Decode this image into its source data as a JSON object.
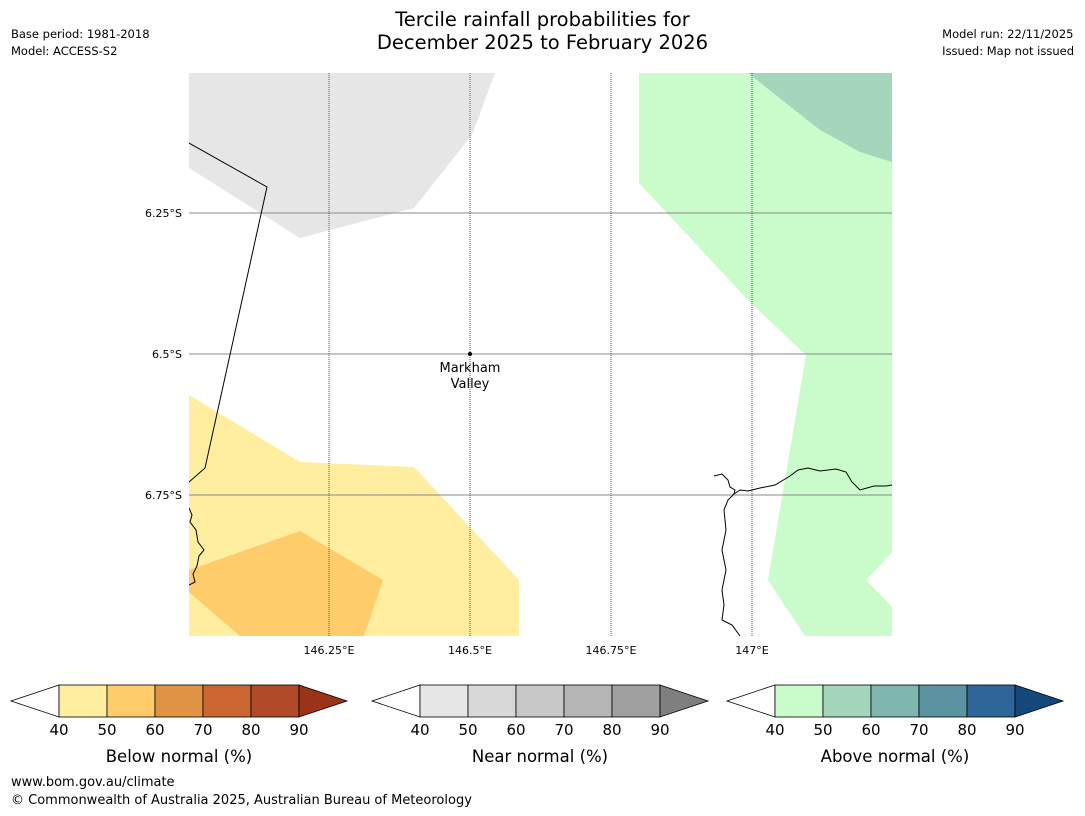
{
  "title": {
    "line1": "Tercile rainfall probabilities for",
    "line2": "December 2025 to February 2026"
  },
  "meta_left": {
    "base_period": "Base period: 1981-2018",
    "model": "Model: ACCESS-S2"
  },
  "meta_right": {
    "model_run": "Model run: 22/11/2025",
    "issued": "Issued: Map not issued"
  },
  "map": {
    "lat_labels": [
      "6.25°S",
      "6.5°S",
      "6.75°S"
    ],
    "lon_labels": [
      "146.25°E",
      "146.5°E",
      "146.75°E",
      "147°E"
    ],
    "place": {
      "line1": "Markham",
      "line2": "Valley"
    }
  },
  "colorbars": [
    {
      "title": "Below normal (%)",
      "ticks": [
        "40",
        "50",
        "60",
        "70",
        "80",
        "90"
      ],
      "under_color": "#ffffff",
      "colors": [
        "#ffeda0",
        "#fecc6a",
        "#e09245",
        "#cc6633",
        "#b04a28"
      ],
      "over_color": "#9a3418"
    },
    {
      "title": "Near normal (%)",
      "ticks": [
        "40",
        "50",
        "60",
        "70",
        "80",
        "90"
      ],
      "under_color": "#ffffff",
      "colors": [
        "#e6e6e6",
        "#d8d8d8",
        "#c8c8c8",
        "#b5b5b5",
        "#a0a0a0"
      ],
      "over_color": "#7f7f7f"
    },
    {
      "title": "Above normal (%)",
      "ticks": [
        "40",
        "50",
        "60",
        "70",
        "80",
        "90"
      ],
      "under_color": "#ffffff",
      "colors": [
        "#c9fcca",
        "#a3d6bb",
        "#7fb6b0",
        "#5b94a0",
        "#2e6699"
      ],
      "over_color": "#14487a"
    }
  ],
  "footer": {
    "url": "www.bom.gov.au/climate",
    "copyright": "© Commonwealth of Australia 2025, Australian Bureau of Meteorology"
  }
}
